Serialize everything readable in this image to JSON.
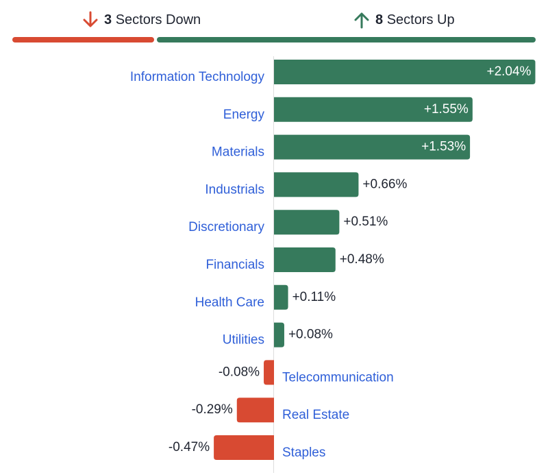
{
  "summary": {
    "down": {
      "count": "3",
      "label": "Sectors Down",
      "icon": "arrow-down-icon"
    },
    "up": {
      "count": "8",
      "label": "Sectors Up",
      "icon": "arrow-up-icon"
    }
  },
  "colors": {
    "up": "#367a5c",
    "down": "#d84a32",
    "label": "#2f5fd8",
    "value": "#1f2430",
    "axis": "#dddddd"
  },
  "chart_data": {
    "type": "bar",
    "orientation": "horizontal",
    "categories": [
      "Information Technology",
      "Energy",
      "Materials",
      "Industrials",
      "Discretionary",
      "Financials",
      "Health Care",
      "Utilities",
      "Telecommunication",
      "Real Estate",
      "Staples"
    ],
    "values": [
      2.04,
      1.55,
      1.53,
      0.66,
      0.51,
      0.48,
      0.11,
      0.08,
      -0.08,
      -0.29,
      -0.47
    ],
    "value_labels": [
      "+2.04%",
      "+1.55%",
      "+1.53%",
      "+0.66%",
      "+0.51%",
      "+0.48%",
      "+0.11%",
      "+0.08%",
      "-0.08%",
      "-0.29%",
      "-0.47%"
    ],
    "unit": "%"
  }
}
